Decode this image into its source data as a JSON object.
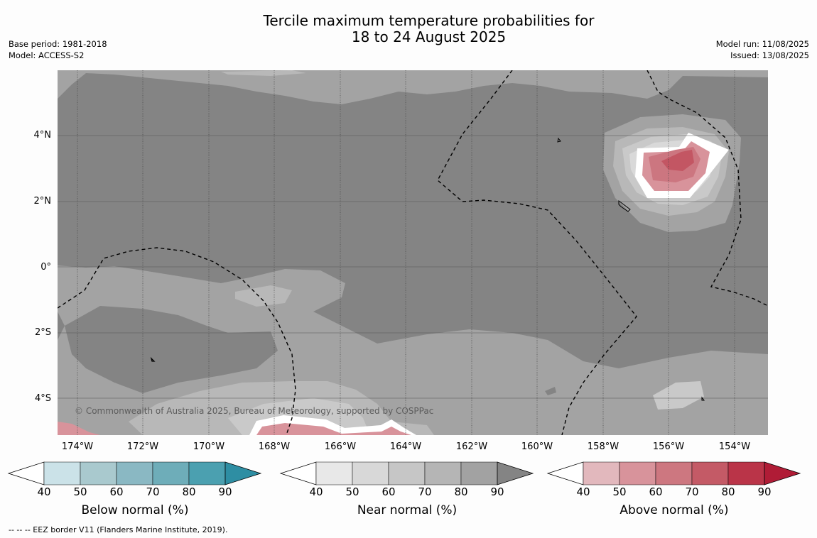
{
  "title": {
    "line1": "Tercile maximum temperature probabilities for",
    "line2": "18 to 24 August 2025"
  },
  "meta_left": {
    "base_period": "Base period: 1981-2018",
    "model": "Model: ACCESS-S2"
  },
  "meta_right": {
    "model_run": "Model run: 11/08/2025",
    "issued": "Issued: 13/08/2025"
  },
  "map": {
    "latitude_labels": [
      "4°N",
      "2°N",
      "0°",
      "2°S",
      "4°S"
    ],
    "longitude_labels": [
      "174°W",
      "172°W",
      "170°W",
      "168°W",
      "166°W",
      "164°W",
      "162°W",
      "160°W",
      "158°W",
      "156°W",
      "154°W"
    ],
    "credit": "© Commonwealth of Australia 2025, Bureau of Meteorology, supported by COSPPac",
    "colors": {
      "near_90": "#848484",
      "near_80": "#a3a3a3",
      "near_70": "#b8b8b8",
      "near_60": "#c9c9c9",
      "near_50": "#d9d9d9",
      "above_50": "#d8939b",
      "above_60": "#cc7680",
      "above_70": "#c35663"
    }
  },
  "colorbars": [
    {
      "title": "Below normal (%)",
      "ticks": [
        "40",
        "50",
        "60",
        "70",
        "80",
        "90"
      ],
      "colors": [
        "#ffffff",
        "#cbe2e8",
        "#a9c9ce",
        "#8ab8c3",
        "#6eadb9",
        "#4ba0b0",
        "#2e8ea3"
      ]
    },
    {
      "title": "Near normal (%)",
      "ticks": [
        "40",
        "50",
        "60",
        "70",
        "80",
        "90"
      ],
      "colors": [
        "#ffffff",
        "#e8e8e8",
        "#d8d8d8",
        "#c6c6c6",
        "#b5b5b5",
        "#a2a2a2",
        "#848484"
      ]
    },
    {
      "title": "Above normal (%)",
      "ticks": [
        "40",
        "50",
        "60",
        "70",
        "80",
        "90"
      ],
      "colors": [
        "#ffffff",
        "#e2b8bd",
        "#d8939b",
        "#cd7780",
        "#c45a66",
        "#ba3448",
        "#b01c36"
      ]
    }
  ],
  "footnote": "--  --  -- EEZ border V11 (Flanders Marine Institute, 2019)."
}
